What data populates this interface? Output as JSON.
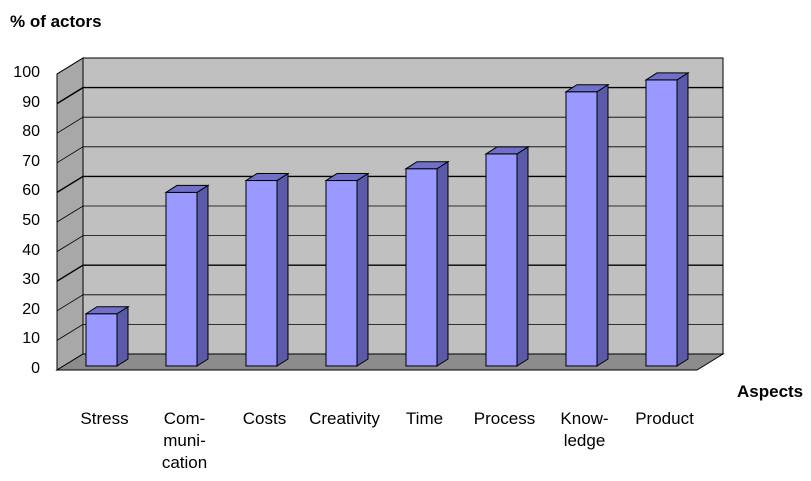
{
  "chart_data": {
    "type": "bar",
    "style": "3d-column",
    "ylabel": "% of actors",
    "xlabel": "Aspects",
    "categories": [
      "Stress",
      "Com-\nmuni-\ncation",
      "Costs",
      "Creativity",
      "Time",
      "Process",
      "Know-\nledge",
      "Product"
    ],
    "values": [
      19,
      60,
      64,
      64,
      68,
      73,
      94,
      98
    ],
    "ylim": [
      0,
      100
    ],
    "yticks": [
      "0",
      "10",
      "20",
      "30",
      "40",
      "50",
      "60",
      "70",
      "80",
      "90",
      "100"
    ],
    "grid": true,
    "colors": {
      "bar_front": "#9999ff",
      "bar_side": "#5a5aa8",
      "bar_top": "#7070c8",
      "wall": "#c0c0c0",
      "floor": "#8c8c8c",
      "gridline": "#000000"
    }
  }
}
